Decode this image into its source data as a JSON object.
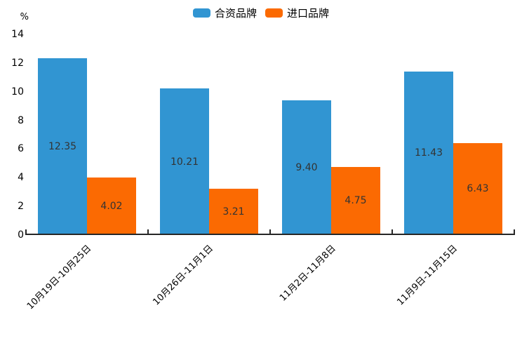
{
  "chart_data": {
    "type": "bar",
    "title": "",
    "categories": [
      "10月19日-10月25日",
      "10月26日-11月1日",
      "11月2日-11月8日",
      "11月9日-11月15日"
    ],
    "series": [
      {
        "name": "合资品牌",
        "color": "#3195d2",
        "values": [
          12.35,
          10.21,
          9.4,
          11.43
        ]
      },
      {
        "name": "进口品牌",
        "color": "#fb6a02",
        "values": [
          4.02,
          3.21,
          4.75,
          6.43
        ]
      }
    ],
    "ylabel": "%",
    "ylim": [
      0,
      14
    ],
    "yticks": [
      0,
      2,
      4,
      6,
      8,
      10,
      12,
      14
    ],
    "value_labels_decimals": 2,
    "legend_position": "top-center",
    "grid": false,
    "x_label_rotation_deg": -45
  },
  "style": {
    "background": "#ffffff",
    "axis_line_color": "#262626",
    "tick_label_color": "#000000",
    "value_label_color": "#333333",
    "legend_text_color": "#000000"
  }
}
